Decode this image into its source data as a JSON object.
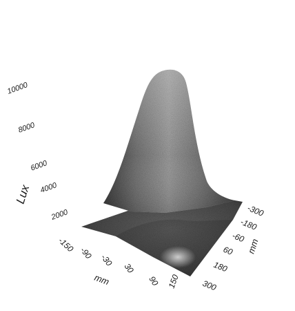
{
  "chart_data": {
    "type": "surface",
    "title": "",
    "zlabel": "Lux",
    "xlabel": "mm",
    "ylabel": "mm",
    "z_ticks": [
      "10000",
      "8000",
      "6000",
      "4000",
      "2000"
    ],
    "x_ticks": [
      "-150",
      "-90",
      "-30",
      "30",
      "90",
      "150"
    ],
    "y_ticks": [
      "-300",
      "-180",
      "-60",
      "60",
      "180",
      "300"
    ],
    "zlim": [
      0,
      10000
    ],
    "xlim": [
      -150,
      150
    ],
    "ylim": [
      -300,
      300
    ],
    "peak": {
      "x": 0,
      "y": -60,
      "z": 9800
    },
    "base_level": 1200,
    "grid": false,
    "colormap": "grayscale"
  }
}
